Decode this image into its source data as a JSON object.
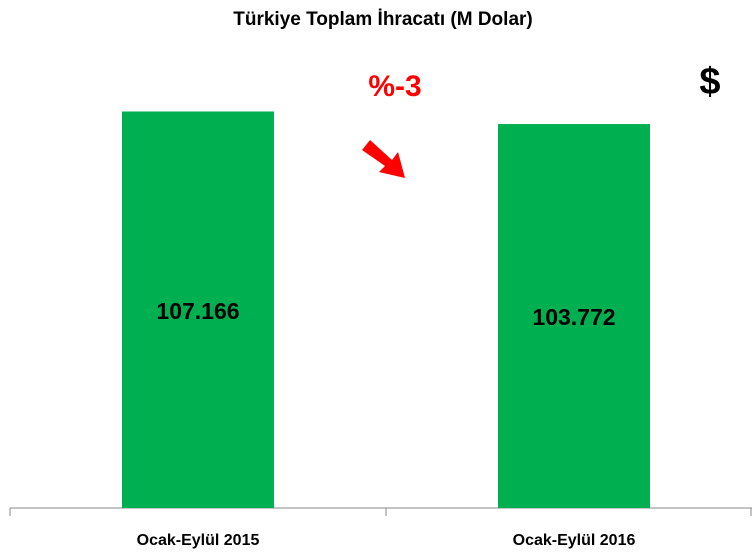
{
  "chart_data": {
    "type": "bar",
    "title": "Türkiye  Toplam  İhracatı (M Dolar)",
    "categories": [
      "Ocak-Eylül 2015",
      "Ocak-Eylül 2016"
    ],
    "values": [
      107166,
      103772
    ],
    "value_labels": [
      "107.166",
      "103.772"
    ],
    "color": "#00b050",
    "ylim": [
      0,
      120000
    ],
    "annotations": [
      "%-3",
      "$"
    ]
  }
}
